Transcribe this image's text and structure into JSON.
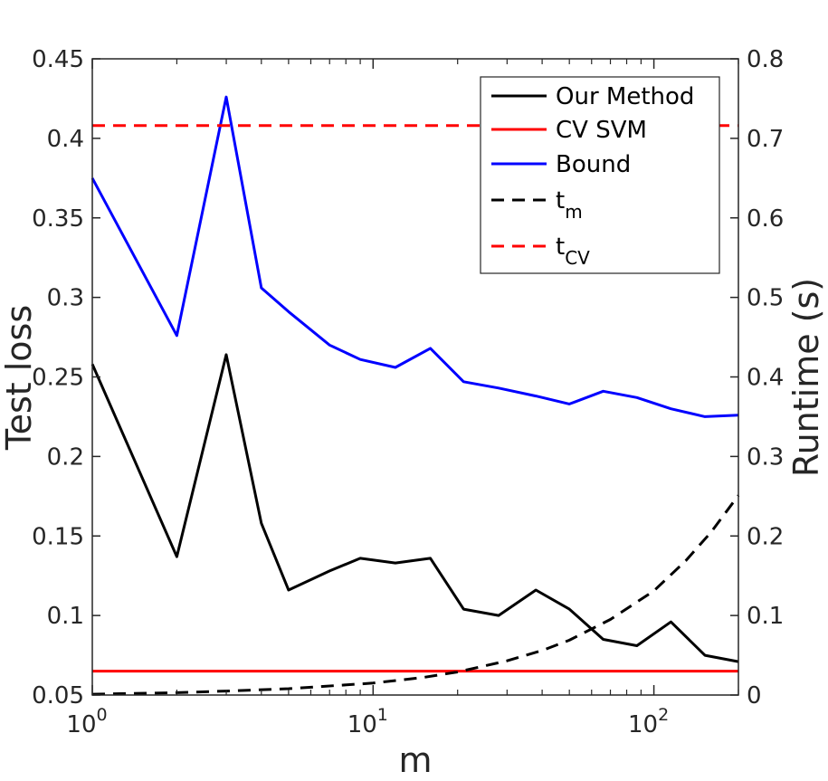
{
  "chart_data": {
    "type": "line",
    "xscale": "log",
    "xlim": [
      1,
      200
    ],
    "xlabel": "m",
    "ylabel": "Test loss",
    "y2label": "Runtime (s)",
    "ylim": [
      0.05,
      0.45
    ],
    "y2lim": [
      0,
      0.8
    ],
    "xticks": [
      {
        "value": 1,
        "base": "10",
        "exp": "0"
      },
      {
        "value": 10,
        "base": "10",
        "exp": "1"
      },
      {
        "value": 100,
        "base": "10",
        "exp": "2"
      }
    ],
    "yticks": [
      "0.05",
      "0.1",
      "0.15",
      "0.2",
      "0.25",
      "0.3",
      "0.35",
      "0.4",
      "0.45"
    ],
    "y2ticks": [
      "0",
      "0.1",
      "0.2",
      "0.3",
      "0.4",
      "0.5",
      "0.6",
      "0.7",
      "0.8"
    ],
    "series": [
      {
        "name": "Our Method",
        "legend_main": "Our Method",
        "legend_sub": "",
        "axis": "left",
        "color": "#000000",
        "dash": false,
        "x": [
          1,
          2,
          3,
          4,
          5,
          7,
          9,
          12,
          16,
          21,
          28,
          38,
          50,
          66,
          87,
          115,
          152,
          200
        ],
        "y": [
          0.258,
          0.137,
          0.264,
          0.158,
          0.116,
          0.128,
          0.136,
          0.133,
          0.136,
          0.104,
          0.1,
          0.116,
          0.104,
          0.085,
          0.081,
          0.096,
          0.075,
          0.071
        ]
      },
      {
        "name": "CV SVM",
        "legend_main": "CV SVM",
        "legend_sub": "",
        "axis": "left",
        "color": "#ff0000",
        "dash": false,
        "x": [
          1,
          200
        ],
        "y": [
          0.065,
          0.065
        ]
      },
      {
        "name": "Bound",
        "legend_main": "Bound",
        "legend_sub": "",
        "axis": "left",
        "color": "#0000ff",
        "dash": false,
        "x": [
          1,
          2,
          3,
          4,
          5,
          7,
          9,
          12,
          16,
          21,
          28,
          38,
          50,
          66,
          87,
          115,
          152,
          200
        ],
        "y": [
          0.375,
          0.276,
          0.426,
          0.306,
          0.291,
          0.27,
          0.261,
          0.256,
          0.268,
          0.247,
          0.243,
          0.238,
          0.233,
          0.241,
          0.237,
          0.23,
          0.225,
          0.226
        ]
      },
      {
        "name": "t_m",
        "legend_main": "t",
        "legend_sub": "m",
        "axis": "right",
        "color": "#000000",
        "dash": true,
        "x": [
          1,
          2,
          3,
          5,
          10,
          15,
          20,
          30,
          40,
          50,
          70,
          100,
          130,
          160,
          200
        ],
        "y": [
          0.001,
          0.003,
          0.005,
          0.008,
          0.015,
          0.022,
          0.029,
          0.043,
          0.056,
          0.069,
          0.095,
          0.131,
          0.169,
          0.205,
          0.251
        ]
      },
      {
        "name": "t_CV",
        "legend_main": "t",
        "legend_sub": "CV",
        "axis": "right",
        "color": "#ff0000",
        "dash": true,
        "x": [
          1,
          200
        ],
        "y": [
          0.716,
          0.716
        ]
      }
    ],
    "legend_position": "top-right"
  }
}
